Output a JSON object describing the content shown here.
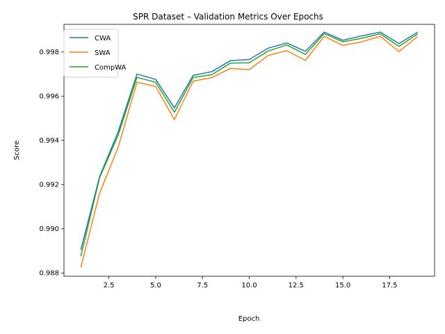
{
  "chart_data": {
    "type": "line",
    "title": "SPR Dataset – Validation Metrics Over Epochs",
    "xlabel": "Epoch",
    "ylabel": "Score",
    "xlim": [
      0.1,
      19.9
    ],
    "ylim": [
      0.98785,
      0.99925
    ],
    "xticks": [
      2.5,
      5.0,
      7.5,
      10.0,
      12.5,
      15.0,
      17.5
    ],
    "xtick_labels": [
      "2.5",
      "5.0",
      "7.5",
      "10.0",
      "12.5",
      "15.0",
      "17.5"
    ],
    "yticks": [
      0.988,
      0.99,
      0.992,
      0.994,
      0.996,
      0.998
    ],
    "ytick_labels": [
      "0.988",
      "0.990",
      "0.992",
      "0.994",
      "0.996",
      "0.998"
    ],
    "grid": false,
    "legend_position": "top-left",
    "x": [
      1,
      2,
      3,
      4,
      5,
      6,
      7,
      8,
      9,
      10,
      11,
      12,
      13,
      14,
      15,
      16,
      17,
      18,
      19
    ],
    "series": [
      {
        "name": "CWA",
        "color": "#1f77b4",
        "values": [
          0.98905,
          0.99235,
          0.9944,
          0.997,
          0.99676,
          0.99547,
          0.99694,
          0.99711,
          0.99761,
          0.99766,
          0.99817,
          0.99841,
          0.99803,
          0.9989,
          0.99853,
          0.99873,
          0.9989,
          0.99838,
          0.9989
        ]
      },
      {
        "name": "SWA",
        "color": "#ff7f0e",
        "values": [
          0.98825,
          0.9916,
          0.9937,
          0.99663,
          0.99644,
          0.99494,
          0.99668,
          0.99684,
          0.99726,
          0.9972,
          0.99784,
          0.99806,
          0.99762,
          0.99871,
          0.9983,
          0.99846,
          0.99871,
          0.99802,
          0.99871
        ]
      },
      {
        "name": "CompWA",
        "color": "#2ca02c",
        "values": [
          0.98875,
          0.9923,
          0.99425,
          0.99685,
          0.99663,
          0.99527,
          0.99684,
          0.99697,
          0.9975,
          0.99751,
          0.99804,
          0.99832,
          0.99789,
          0.99883,
          0.99846,
          0.99862,
          0.99882,
          0.99825,
          0.99882
        ]
      }
    ]
  }
}
